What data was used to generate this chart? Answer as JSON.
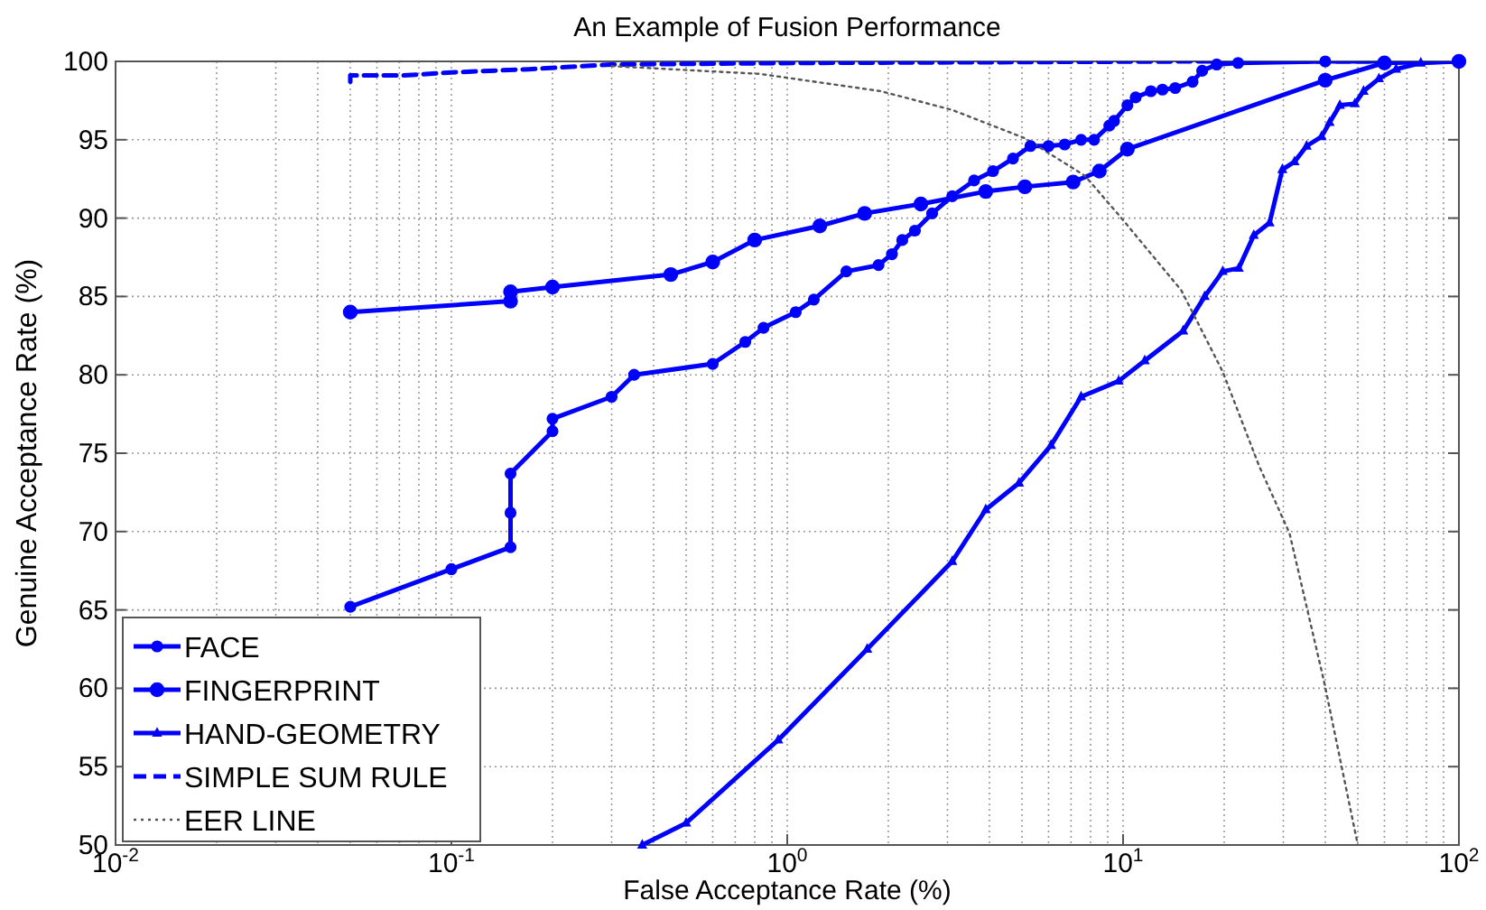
{
  "chart_data": {
    "type": "line",
    "title": "An Example of Fusion Performance",
    "xlabel": "False Acceptance Rate (%)",
    "ylabel": "Genuine Acceptance Rate (%)",
    "log": "x",
    "grid": true,
    "legend": "bottom left",
    "xlim": [
      0.01,
      100
    ],
    "ylim": [
      50,
      100
    ],
    "xticks": [
      {
        "value": 0.01,
        "label": "10$^{-2}$"
      },
      {
        "value": 0.1,
        "label": "10$^{-1}$"
      },
      {
        "value": 1,
        "label": "10$^{0}$"
      },
      {
        "value": 10,
        "label": "10$^{1}$"
      },
      {
        "value": 100,
        "label": "10$^{2}$"
      }
    ],
    "yticks": [
      50,
      55,
      60,
      65,
      70,
      75,
      80,
      85,
      90,
      95,
      100
    ],
    "series": [
      {
        "name": "FACE",
        "color": "#0000ff",
        "marker": "circle",
        "line_style": "solid",
        "x": [
          0.05,
          0.1,
          0.15,
          0.15,
          0.15,
          0.2,
          0.2,
          0.3,
          0.35,
          0.6,
          0.75,
          0.85,
          1.06,
          1.2,
          1.5,
          1.87,
          2.05,
          2.2,
          2.4,
          2.7,
          3.1,
          3.6,
          4.1,
          4.7,
          5.3,
          6.0,
          6.7,
          7.5,
          8.2,
          9.1,
          9.4,
          10.3,
          10.9,
          12.1,
          13.1,
          14.3,
          16.1,
          17.2,
          19,
          22,
          40,
          100
        ],
        "values": [
          65.2,
          67.6,
          69.0,
          71.2,
          73.7,
          76.4,
          77.2,
          78.6,
          80.0,
          80.7,
          82.1,
          83.0,
          84.0,
          84.8,
          86.6,
          87.0,
          87.7,
          88.6,
          89.2,
          90.3,
          91.4,
          92.4,
          93.0,
          93.8,
          94.6,
          94.6,
          94.7,
          95.0,
          95.0,
          95.9,
          96.2,
          97.2,
          97.7,
          98.1,
          98.2,
          98.3,
          98.7,
          99.4,
          99.8,
          99.9,
          100,
          100
        ]
      },
      {
        "name": "FINGERPRINT",
        "color": "#0000ff",
        "marker": "circle",
        "line_style": "solid",
        "x": [
          0.05,
          0.15,
          0.15,
          0.2,
          0.45,
          0.6,
          0.8,
          1.25,
          1.7,
          2.5,
          3.9,
          5.1,
          7.1,
          8.5,
          10.3,
          40,
          60,
          100
        ],
        "values": [
          84.0,
          84.7,
          85.3,
          85.6,
          86.4,
          87.2,
          88.6,
          89.5,
          90.3,
          90.9,
          91.7,
          92.0,
          92.3,
          93.0,
          94.4,
          98.8,
          99.9,
          100
        ]
      },
      {
        "name": "HAND-GEOMETRY",
        "color": "#0000ff",
        "marker": "triangle",
        "line_style": "solid",
        "x": [
          0.37,
          0.5,
          0.94,
          1.73,
          3.1,
          3.9,
          4.9,
          6.1,
          7.5,
          9.7,
          11.6,
          15.1,
          17.5,
          19.8,
          22.1,
          24.5,
          27.3,
          29.8,
          32.4,
          35.2,
          39,
          41.2,
          44.2,
          49,
          52,
          57.8,
          65,
          77,
          100
        ],
        "values": [
          50,
          51.4,
          56.7,
          62.5,
          68.1,
          71.4,
          73.1,
          75.5,
          78.6,
          79.6,
          80.9,
          82.8,
          85.0,
          86.6,
          86.8,
          88.9,
          89.7,
          93.1,
          93.6,
          94.6,
          95.2,
          96.1,
          97.2,
          97.3,
          98.1,
          98.9,
          99.5,
          99.9,
          100
        ]
      },
      {
        "name": "SIMPLE SUM RULE",
        "color": "#0000ff",
        "marker": "none",
        "line_style": "dashed",
        "x": [
          0.05,
          0.05,
          0.072,
          0.1,
          0.17,
          0.3,
          1.1,
          17,
          100
        ],
        "values": [
          98.7,
          99.1,
          99.1,
          99.3,
          99.5,
          99.8,
          99.9,
          100,
          100
        ]
      },
      {
        "name": "EER LINE",
        "color": "#555555",
        "marker": "none",
        "line_style": "dotted",
        "x": [
          0.3,
          0.83,
          1.9,
          3.1,
          5.1,
          7.7,
          9.8,
          14.9,
          19.8,
          25.4,
          31.3,
          39.7,
          50
        ],
        "values": [
          99.7,
          99.2,
          98.1,
          96.9,
          95.1,
          92.7,
          90.1,
          85.4,
          80.2,
          74.2,
          69.9,
          60.4,
          50
        ]
      }
    ]
  }
}
